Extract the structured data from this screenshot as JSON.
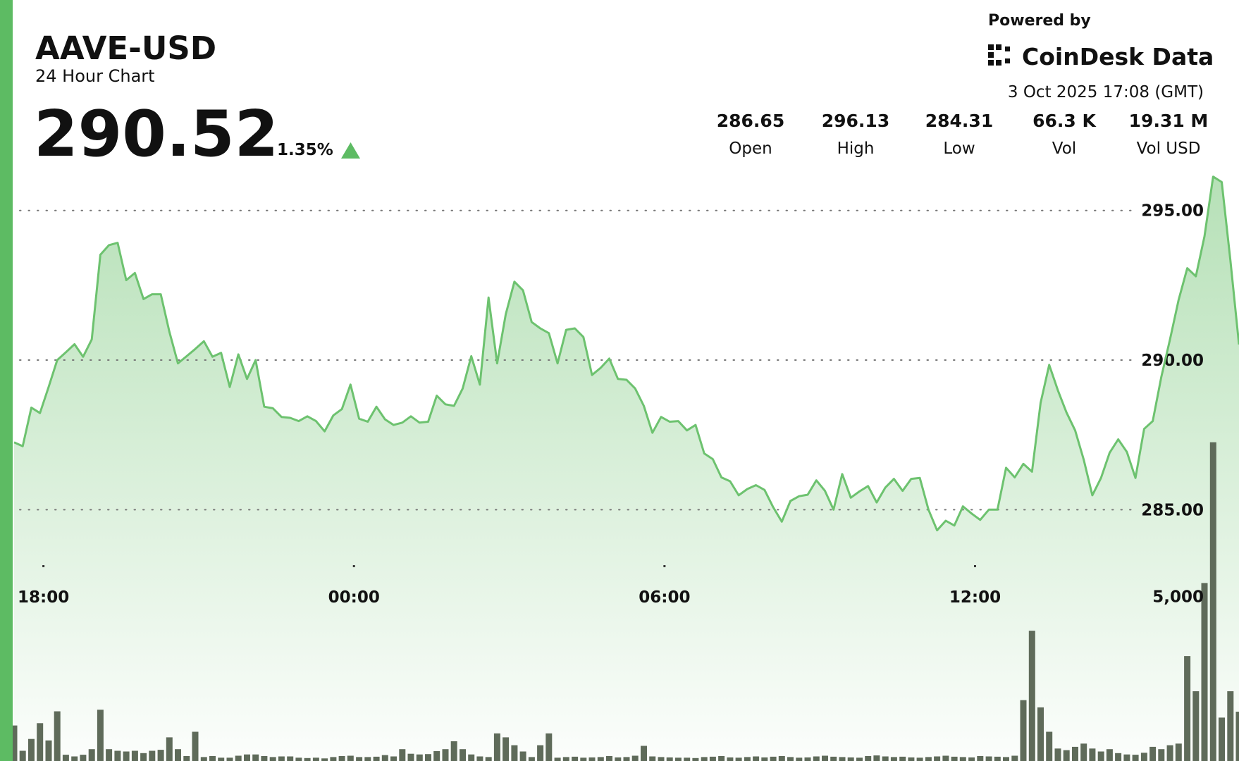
{
  "header": {
    "symbol": "AAVE-USD",
    "subtitle": "24 Hour Chart",
    "price": "290.52",
    "change": "1.35%"
  },
  "brand": {
    "powered_by": "Powered by",
    "name": "CoinDesk Data"
  },
  "timestamp": "3 Oct 2025 17:08 (GMT)",
  "stats": [
    {
      "value": "286.65",
      "label": "Open"
    },
    {
      "value": "296.13",
      "label": "High"
    },
    {
      "value": "284.31",
      "label": "Low"
    },
    {
      "value": "66.3 K",
      "label": "Vol"
    },
    {
      "value": "19.31 M",
      "label": "Vol USD"
    }
  ],
  "chart_data": {
    "type": "line",
    "x": [
      -34,
      -24,
      -14,
      -4,
      6,
      16,
      26,
      36,
      46,
      56,
      66,
      76,
      86,
      96,
      106,
      116,
      126,
      136,
      146,
      156,
      166,
      176,
      186,
      196,
      206,
      216,
      226,
      236,
      246,
      256,
      266,
      276,
      286,
      296,
      306,
      316,
      326,
      336,
      346,
      356,
      366,
      376,
      386,
      396,
      406,
      416,
      426,
      436,
      446,
      456,
      466,
      476,
      486,
      496,
      506,
      516,
      526,
      536,
      546,
      556,
      566,
      576,
      586,
      596,
      606,
      616,
      626,
      636,
      646,
      656,
      666,
      676,
      686,
      696,
      706,
      716,
      726,
      736,
      746,
      756,
      766,
      776,
      786,
      796,
      806,
      816,
      826,
      836,
      846,
      856,
      866,
      876,
      886,
      896,
      906,
      916,
      926,
      936,
      946,
      956,
      966,
      976,
      986,
      996,
      1006,
      1016,
      1026,
      1036,
      1046,
      1056,
      1066,
      1076,
      1086,
      1096,
      1106,
      1116,
      1126,
      1136,
      1146,
      1156,
      1166,
      1176,
      1186,
      1196,
      1206,
      1216,
      1226,
      1236,
      1246,
      1256,
      1266,
      1276,
      1286,
      1296,
      1306,
      1316,
      1326,
      1336,
      1346,
      1356,
      1366,
      1376,
      1386
    ],
    "series": [
      {
        "color": "#6dc26f",
        "values": [
          287.25,
          287.12,
          288.41,
          288.23,
          289.1,
          290.0,
          290.26,
          290.53,
          290.11,
          290.69,
          293.52,
          293.84,
          293.92,
          292.67,
          292.91,
          292.04,
          292.2,
          292.2,
          290.95,
          289.89,
          290.13,
          290.37,
          290.63,
          290.11,
          290.24,
          289.1,
          290.19,
          289.37,
          290.0,
          288.44,
          288.39,
          288.1,
          288.07,
          287.96,
          288.12,
          287.96,
          287.62,
          288.15,
          288.36,
          289.18,
          288.04,
          287.94,
          288.44,
          288.02,
          287.83,
          287.91,
          288.12,
          287.91,
          287.94,
          288.81,
          288.52,
          288.47,
          289.05,
          290.13,
          289.18,
          292.09,
          289.89,
          291.53,
          292.62,
          292.33,
          291.27,
          291.06,
          290.9,
          289.89,
          291.01,
          291.06,
          290.77,
          289.5,
          289.74,
          290.05,
          289.37,
          289.34,
          289.05,
          288.47,
          287.57,
          288.1,
          287.94,
          287.96,
          287.65,
          287.83,
          286.88,
          286.69,
          286.08,
          285.95,
          285.48,
          285.69,
          285.82,
          285.66,
          285.08,
          284.6,
          285.29,
          285.45,
          285.5,
          285.98,
          285.63,
          285.0,
          286.19,
          285.4,
          285.61,
          285.79,
          285.24,
          285.74,
          286.03,
          285.63,
          286.03,
          286.06,
          285.0,
          284.31,
          284.63,
          284.47,
          285.11,
          284.87,
          284.66,
          285.0,
          285.0,
          286.4,
          286.08,
          286.53,
          286.27,
          288.57,
          289.84,
          288.99,
          288.25,
          287.65,
          286.67,
          285.48,
          286.06,
          286.9,
          287.35,
          286.93,
          286.06,
          287.7,
          287.96,
          289.44,
          290.69,
          292.01,
          293.07,
          292.8,
          294.13,
          296.13,
          295.95,
          293.33,
          290.52
        ]
      },
      {
        "type": "bar",
        "axis": "y2",
        "color": "#5f6b5a",
        "values": [
          1080,
          310,
          670,
          1150,
          625,
          1510,
          190,
          140,
          190,
          360,
          1560,
          360,
          310,
          290,
          310,
          240,
          310,
          340,
          720,
          360,
          150,
          890,
          120,
          150,
          100,
          100,
          160,
          200,
          200,
          150,
          120,
          140,
          140,
          100,
          90,
          100,
          80,
          120,
          150,
          160,
          120,
          120,
          130,
          180,
          140,
          360,
          220,
          200,
          210,
          300,
          360,
          600,
          360,
          200,
          140,
          120,
          840,
          720,
          480,
          290,
          120,
          480,
          840,
          100,
          120,
          130,
          100,
          110,
          120,
          150,
          110,
          120,
          160,
          460,
          140,
          120,
          110,
          100,
          100,
          90,
          120,
          130,
          150,
          110,
          100,
          120,
          140,
          110,
          130,
          150,
          120,
          100,
          110,
          140,
          160,
          130,
          120,
          110,
          100,
          150,
          170,
          140,
          120,
          130,
          110,
          100,
          120,
          140,
          160,
          130,
          120,
          110,
          150,
          140,
          130,
          120,
          160,
          1850,
          3960,
          1630,
          890,
          380,
          330,
          430,
          530,
          380,
          290,
          360,
          240,
          200,
          190,
          250,
          430,
          360,
          480,
          530,
          3190,
          2120,
          5410,
          9690,
          1320,
          2120,
          1500
        ]
      }
    ],
    "xlim": [
      -34,
      1386
    ],
    "xticks": [
      {
        "value": 0,
        "label": "18:00"
      },
      {
        "value": 360,
        "label": "00:00"
      },
      {
        "value": 720,
        "label": "06:00"
      },
      {
        "value": 1080,
        "label": "12:00"
      }
    ],
    "ylim": [
      276.6,
      296.5
    ],
    "yticks": [
      {
        "value": 285,
        "label": "285.00"
      },
      {
        "value": 290,
        "label": "290.00"
      },
      {
        "value": 295,
        "label": "295.00"
      }
    ],
    "y2lim": [
      0,
      18100
    ],
    "y2ticks": [
      {
        "value": 5000,
        "label": "5,000"
      }
    ],
    "grid": true
  }
}
